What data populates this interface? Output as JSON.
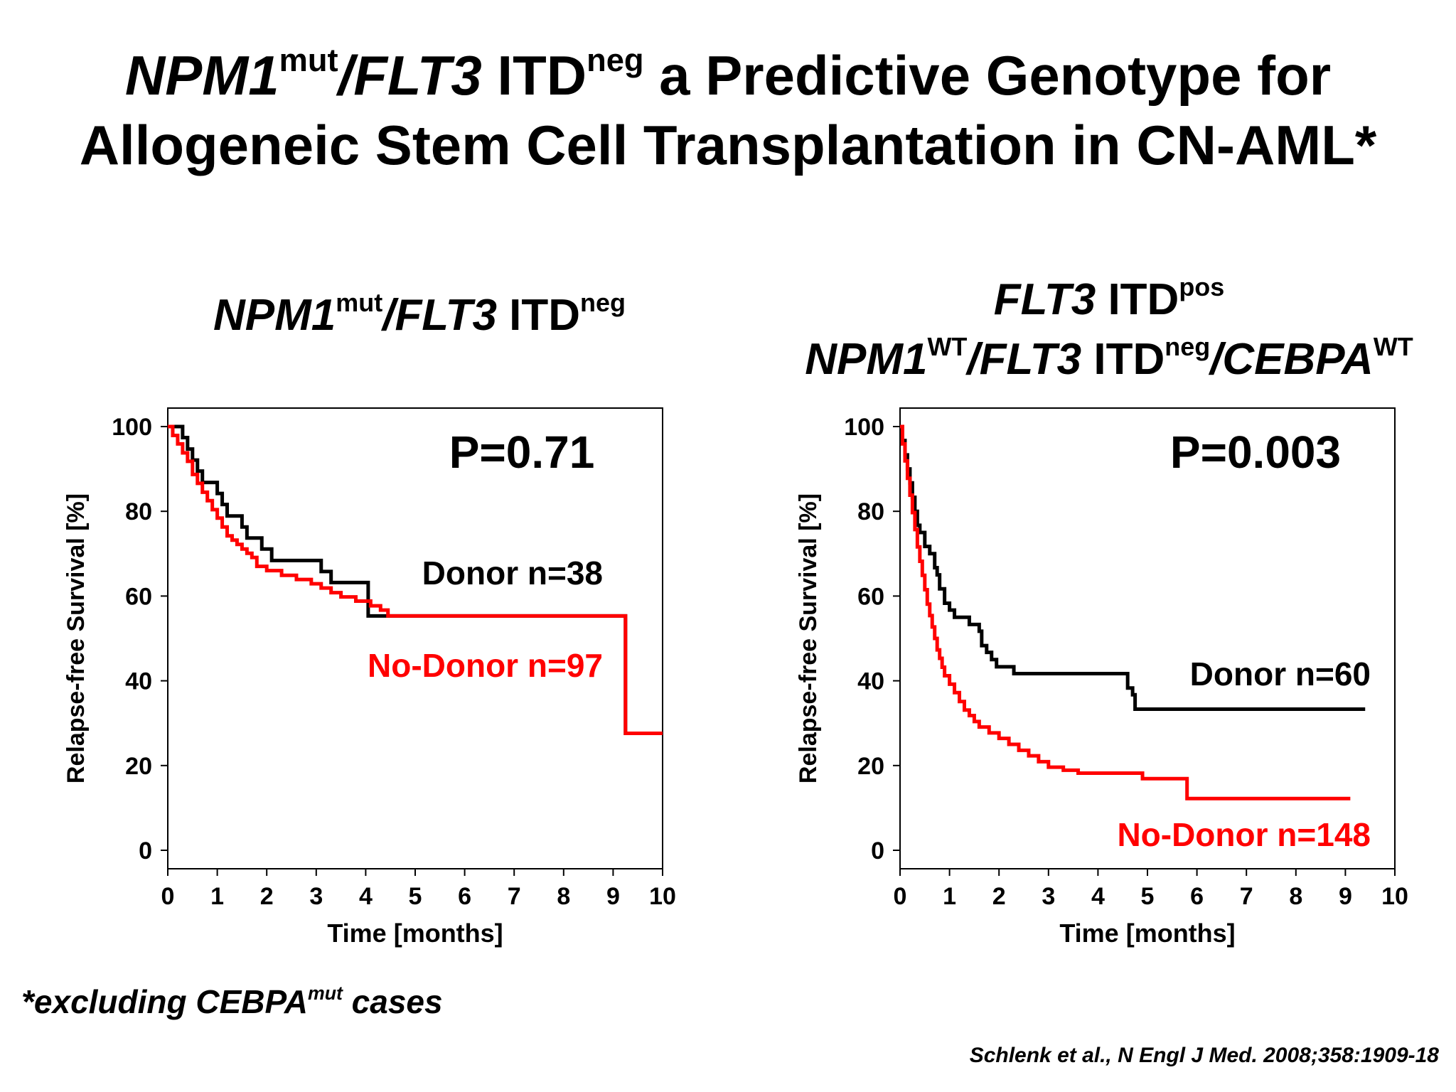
{
  "title": {
    "line1": {
      "gene1": "NPM1",
      "gene1_sup": "mut",
      "slash": "/",
      "gene2": "FLT3",
      "itd": " ITD",
      "itd_sup": "neg",
      "rest": " a Predictive Genotype for"
    },
    "line2": "Allogeneic Stem Cell Transplantation in CN-AML*"
  },
  "panels": [
    {
      "title_parts": {
        "gene1": "NPM1",
        "gene1_sup": "mut",
        "slash": "/",
        "gene2": "FLT3",
        "itd": " ITD",
        "itd_sup": "neg"
      }
    },
    {
      "title_line1": {
        "gene": "FLT3",
        "itd": " ITD",
        "itd_sup": "pos"
      },
      "title_line2": {
        "gene1": "NPM1",
        "gene1_sup": "WT",
        "slash": "/",
        "gene2": "FLT3",
        "itd": " ITD",
        "itd_sup": "neg",
        "slash2": "/",
        "gene3": "CEBPA",
        "gene3_sup": "WT"
      }
    }
  ],
  "chart_data": [
    {
      "type": "line",
      "subtype": "kaplan-meier",
      "xlabel": "Time [months]",
      "ylabel": "Relapse-free Survival [%]",
      "xlim": [
        0,
        10
      ],
      "ylim": [
        0,
        100
      ],
      "xticks": [
        0,
        1,
        2,
        3,
        4,
        5,
        6,
        7,
        8,
        9,
        10
      ],
      "yticks": [
        0,
        20,
        40,
        60,
        80,
        100
      ],
      "grid": false,
      "annotation": "P=0.71",
      "series": [
        {
          "name": "Donor n=38",
          "color": "#000000",
          "x": [
            0,
            0.3,
            0.4,
            0.5,
            0.6,
            0.7,
            0.85,
            1.0,
            1.1,
            1.2,
            1.35,
            1.5,
            1.6,
            1.75,
            1.9,
            2.1,
            2.4,
            2.8,
            3.1,
            3.3,
            3.6,
            3.9,
            4.05,
            4.2,
            4.45,
            9.25,
            9.25,
            10.0
          ],
          "y": [
            100,
            97.4,
            94.7,
            92.1,
            89.5,
            86.8,
            86.8,
            84.2,
            81.6,
            78.9,
            78.9,
            76.3,
            73.7,
            73.7,
            71.1,
            68.4,
            68.4,
            68.4,
            65.8,
            63.2,
            63.2,
            63.2,
            55.3,
            55.3,
            55.3,
            55.3,
            27.6,
            27.6
          ]
        },
        {
          "name": "No-Donor n=97",
          "color": "#ff0000",
          "x": [
            0,
            0.1,
            0.2,
            0.3,
            0.4,
            0.5,
            0.6,
            0.7,
            0.8,
            0.9,
            1.0,
            1.1,
            1.2,
            1.3,
            1.4,
            1.5,
            1.6,
            1.7,
            1.8,
            2.0,
            2.3,
            2.6,
            2.9,
            3.1,
            3.3,
            3.5,
            3.8,
            4.1,
            4.3,
            4.45,
            9.25,
            9.25,
            10.0
          ],
          "y": [
            100,
            97.9,
            95.9,
            93.8,
            91.8,
            88.7,
            86.6,
            84.5,
            82.5,
            80.4,
            78.4,
            76.3,
            74.2,
            73.2,
            72.2,
            71.1,
            70.1,
            69.1,
            67.0,
            66.0,
            64.9,
            63.9,
            62.9,
            61.9,
            60.8,
            59.8,
            58.8,
            57.7,
            56.7,
            55.3,
            55.3,
            27.6,
            27.6
          ]
        }
      ],
      "labels": {
        "donor": "Donor n=38",
        "nodonor": "No-Donor n=97"
      }
    },
    {
      "type": "line",
      "subtype": "kaplan-meier",
      "xlabel": "Time [months]",
      "ylabel": "Relapse-free Survival [%]",
      "xlim": [
        0,
        10
      ],
      "ylim": [
        0,
        100
      ],
      "xticks": [
        0,
        1,
        2,
        3,
        4,
        5,
        6,
        7,
        8,
        9,
        10
      ],
      "yticks": [
        0,
        20,
        40,
        60,
        80,
        100
      ],
      "grid": false,
      "annotation": "P=0.003",
      "series": [
        {
          "name": "Donor n=60",
          "color": "#000000",
          "x": [
            0,
            0.05,
            0.1,
            0.15,
            0.2,
            0.25,
            0.3,
            0.35,
            0.4,
            0.5,
            0.6,
            0.7,
            0.75,
            0.8,
            0.9,
            1.0,
            1.1,
            1.2,
            1.4,
            1.5,
            1.6,
            1.65,
            1.75,
            1.85,
            1.95,
            2.2,
            2.3,
            2.5,
            3.5,
            4.5,
            4.6,
            4.7,
            4.75,
            4.8,
            5.5,
            9.4
          ],
          "y": [
            100,
            96.7,
            93.3,
            90.0,
            86.7,
            83.3,
            80.0,
            76.7,
            75.0,
            71.7,
            70.0,
            66.7,
            65.0,
            61.7,
            58.3,
            56.7,
            55.0,
            55.0,
            53.3,
            53.3,
            51.7,
            48.3,
            46.7,
            45.0,
            43.3,
            43.3,
            41.7,
            41.7,
            41.7,
            41.7,
            38.3,
            36.7,
            33.3,
            33.3,
            33.3,
            33.3
          ]
        },
        {
          "name": "No-Donor n=148",
          "color": "#ff0000",
          "x": [
            0,
            0.05,
            0.1,
            0.15,
            0.2,
            0.25,
            0.3,
            0.35,
            0.4,
            0.45,
            0.5,
            0.55,
            0.6,
            0.65,
            0.7,
            0.75,
            0.8,
            0.85,
            0.9,
            1.0,
            1.1,
            1.2,
            1.3,
            1.4,
            1.5,
            1.6,
            1.8,
            2.0,
            2.2,
            2.4,
            2.6,
            2.8,
            3.0,
            3.3,
            3.6,
            4.0,
            4.4,
            4.9,
            5.5,
            5.8,
            6.5,
            7.5,
            9.1
          ],
          "y": [
            100,
            95.9,
            91.9,
            87.8,
            83.8,
            79.7,
            75.7,
            71.6,
            68.2,
            64.9,
            61.5,
            58.1,
            55.4,
            52.7,
            50.0,
            47.3,
            45.3,
            43.2,
            41.2,
            39.2,
            37.2,
            35.1,
            33.1,
            31.8,
            30.4,
            29.1,
            27.7,
            26.4,
            25.0,
            23.6,
            22.3,
            20.9,
            19.6,
            18.9,
            18.2,
            18.2,
            18.2,
            16.9,
            16.9,
            12.2,
            12.2,
            12.2,
            12.2
          ]
        }
      ],
      "labels": {
        "donor": "Donor n=60",
        "nodonor": "No-Donor n=148"
      }
    }
  ],
  "footnote": {
    "prefix": "*excluding ",
    "gene": "CEBPA",
    "gene_sup": "mut",
    "suffix": " cases"
  },
  "citation": "Schlenk et al., N Engl J Med. 2008;358:1909-18"
}
